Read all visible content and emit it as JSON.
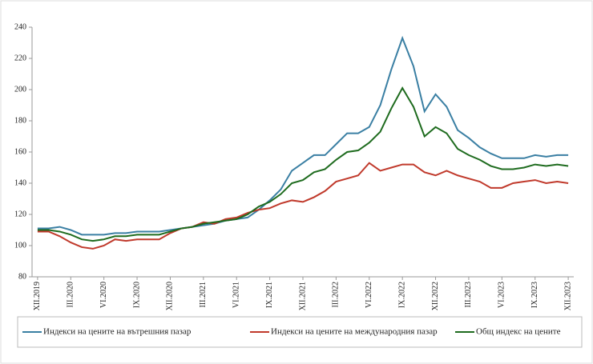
{
  "chart_data": {
    "type": "line",
    "categories": [
      "XII.2019",
      null,
      null,
      "III.2020",
      null,
      null,
      "VI.2020",
      null,
      null,
      "IX.2020",
      null,
      null,
      "XII.2020",
      null,
      null,
      "III.2021",
      null,
      null,
      "VI.2021",
      null,
      null,
      "IX.2021",
      null,
      null,
      "XII.2021",
      null,
      null,
      "III.2022",
      null,
      null,
      "VI.2022",
      null,
      null,
      "IX.2022",
      null,
      null,
      "XII.2022",
      null,
      null,
      "III.2023",
      null,
      null,
      "VI.2023",
      null,
      null,
      "IX.2023",
      null,
      null,
      "XII.2023"
    ],
    "series": [
      {
        "name": "Индекси на цените на вътрешния пазар",
        "color": "#3a7fa3",
        "values": [
          111,
          111,
          112,
          110,
          107,
          107,
          107,
          108,
          108,
          109,
          109,
          109,
          110,
          111,
          112,
          113,
          114,
          116,
          117,
          118,
          123,
          129,
          136,
          148,
          153,
          158,
          158,
          165,
          172,
          172,
          176,
          190,
          213,
          233,
          215,
          186,
          197,
          189,
          174,
          169,
          163,
          159,
          156,
          156,
          156,
          158,
          157,
          158,
          158
        ]
      },
      {
        "name": "Индекси на цените на международния пазар",
        "color": "#c0392b",
        "values": [
          109,
          109,
          106,
          102,
          99,
          98,
          100,
          104,
          103,
          104,
          104,
          104,
          108,
          111,
          112,
          115,
          114,
          117,
          118,
          121,
          123,
          124,
          127,
          129,
          128,
          131,
          135,
          141,
          143,
          145,
          153,
          148,
          150,
          152,
          152,
          147,
          145,
          148,
          145,
          143,
          141,
          137,
          137,
          140,
          141,
          142,
          140,
          141,
          140
        ]
      },
      {
        "name": "Общ индекс на цените",
        "color": "#1e6b1e",
        "values": [
          110,
          110,
          109,
          107,
          104,
          103,
          104,
          106,
          106,
          107,
          107,
          107,
          109,
          111,
          112,
          114,
          115,
          116,
          117,
          120,
          125,
          128,
          133,
          140,
          142,
          147,
          149,
          155,
          160,
          161,
          166,
          173,
          188,
          201,
          189,
          170,
          176,
          172,
          162,
          158,
          155,
          151,
          149,
          149,
          150,
          152,
          151,
          152,
          151
        ]
      }
    ],
    "ylim": [
      80,
      240
    ],
    "yticks": [
      80,
      100,
      120,
      140,
      160,
      180,
      200,
      220,
      240
    ],
    "grid": false
  }
}
